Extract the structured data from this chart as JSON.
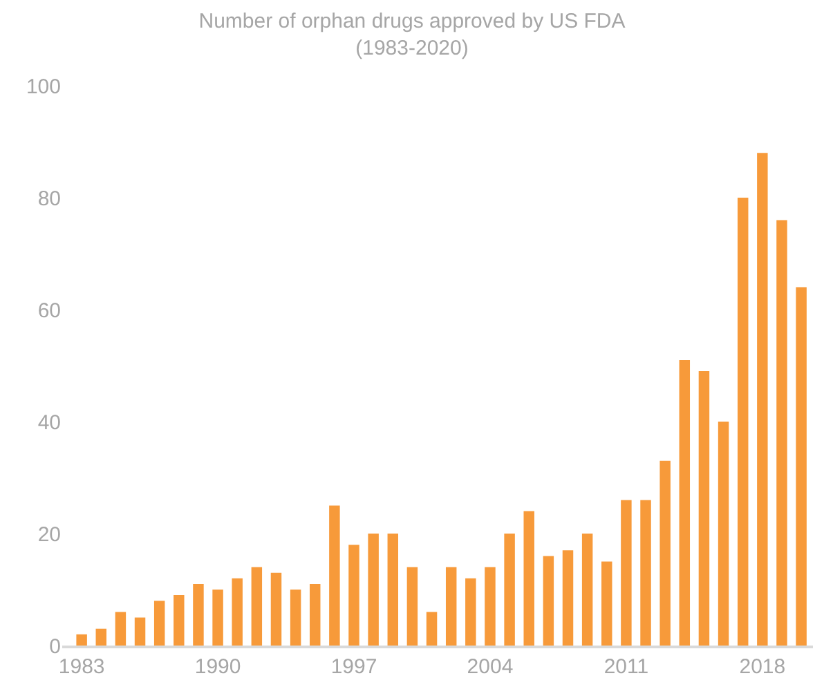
{
  "chart_data": {
    "type": "bar",
    "title": "Number of orphan drugs approved by US FDA",
    "subtitle": "(1983-2020)",
    "x": [
      1983,
      1984,
      1985,
      1986,
      1987,
      1988,
      1989,
      1990,
      1991,
      1992,
      1993,
      1994,
      1995,
      1996,
      1997,
      1998,
      1999,
      2000,
      2001,
      2002,
      2003,
      2004,
      2005,
      2006,
      2007,
      2008,
      2009,
      2010,
      2011,
      2012,
      2013,
      2014,
      2015,
      2016,
      2017,
      2018,
      2019,
      2020
    ],
    "values": [
      2,
      3,
      6,
      5,
      8,
      9,
      11,
      10,
      12,
      14,
      13,
      10,
      11,
      25,
      18,
      20,
      20,
      14,
      6,
      14,
      12,
      14,
      20,
      24,
      16,
      17,
      20,
      15,
      26,
      26,
      33,
      51,
      49,
      40,
      80,
      88,
      76,
      64
    ],
    "color": "#f79a3a",
    "xlim": [
      1982,
      2020.6
    ],
    "xticks": [
      1983,
      1990,
      1997,
      2004,
      2011,
      2018
    ],
    "ylim": [
      0,
      100
    ],
    "yticks": [
      0,
      20,
      40,
      60,
      80,
      100
    ],
    "grid": false
  }
}
